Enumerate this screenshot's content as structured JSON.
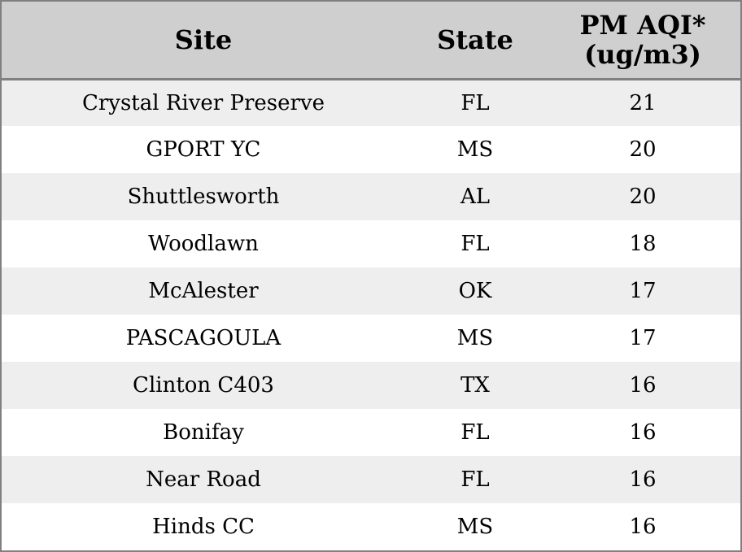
{
  "table": {
    "headers": {
      "site": "Site",
      "state": "State",
      "aqi_line1": "PM AQI*",
      "aqi_line2": "(ug/m3)"
    },
    "rows": [
      {
        "site": "Crystal River Preserve",
        "state": "FL",
        "aqi": "21"
      },
      {
        "site": "GPORT YC",
        "state": "MS",
        "aqi": "20"
      },
      {
        "site": "Shuttlesworth",
        "state": "AL",
        "aqi": "20"
      },
      {
        "site": "Woodlawn",
        "state": "FL",
        "aqi": "18"
      },
      {
        "site": "McAlester",
        "state": "OK",
        "aqi": "17"
      },
      {
        "site": "PASCAGOULA",
        "state": "MS",
        "aqi": "17"
      },
      {
        "site": "Clinton C403",
        "state": "TX",
        "aqi": "16"
      },
      {
        "site": "Bonifay",
        "state": "FL",
        "aqi": "16"
      },
      {
        "site": "Near Road",
        "state": "FL",
        "aqi": "16"
      },
      {
        "site": "Hinds CC",
        "state": "MS",
        "aqi": "16"
      }
    ],
    "colors": {
      "header_bg": "#cfcfcf",
      "row_alt_bg": "#eeeeee",
      "border": "#808080"
    }
  }
}
